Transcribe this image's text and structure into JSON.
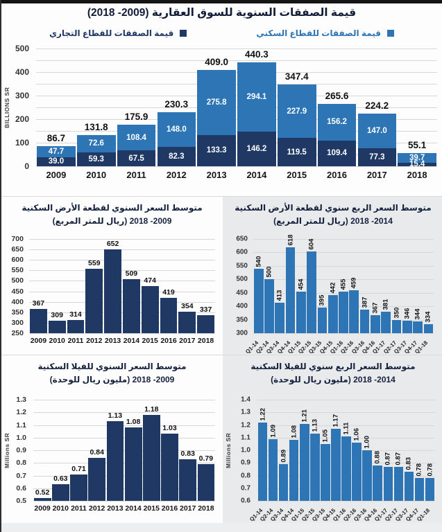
{
  "page": {
    "background": "#fdfdfe",
    "gray_panel_background": "#e8eaec",
    "accent_blue": "#2E75B6",
    "accent_navy": "#1F3864",
    "gridline_color": "#d7d7d7"
  },
  "chart_data": [
    {
      "type": "bar",
      "stacked": true,
      "title": "قيمة الصفقات السنوية للسوق العقارية (2009- 2018)",
      "ylabel": "BILLIONS SR",
      "ylim": [
        0,
        500
      ],
      "ytick_step": 100,
      "grid_step": 50,
      "ytick_decimals": 0,
      "value_decimals": 1,
      "grid": true,
      "legend_position": "top",
      "categories": [
        "2009",
        "2010",
        "2011",
        "2012",
        "2013",
        "2014",
        "2015",
        "2016",
        "2017",
        "2018"
      ],
      "series": [
        {
          "name": "قيمة الصفقات للقطاع التجاري",
          "color": "#1F3864",
          "values": [
            39.0,
            59.3,
            67.5,
            82.3,
            133.3,
            146.2,
            119.5,
            109.4,
            77.3,
            15.4
          ]
        },
        {
          "name": "قيمة الصفقات للقطاع السكني",
          "color": "#2E75B6",
          "values": [
            47.7,
            72.6,
            108.4,
            148.0,
            275.8,
            294.1,
            227.9,
            156.2,
            147.0,
            39.7
          ]
        }
      ],
      "totals": [
        86.7,
        131.8,
        175.9,
        230.3,
        409.0,
        440.3,
        347.4,
        265.6,
        224.2,
        55.1
      ]
    },
    {
      "type": "bar",
      "title": "متوسط السعر السنوي لقطعة الأرض السكنية (ريال للمتر المربع) 2009- 2018",
      "title_line1": "متوسط السعر السنوي لقطعة الأرض السكنية",
      "title_line2": "(ريال للمتر المربع) 2009- 2018",
      "ylim": [
        250,
        700
      ],
      "ytick_step": 50,
      "ytick_decimals": 0,
      "value_decimals": 0,
      "grid": true,
      "bar_color": "#1F3864",
      "categories": [
        "2009",
        "2010",
        "2011",
        "2012",
        "2013",
        "2014",
        "2015",
        "2016",
        "2017",
        "2018"
      ],
      "values": [
        367,
        309,
        314,
        559,
        652,
        509,
        474,
        419,
        354,
        337
      ]
    },
    {
      "type": "bar",
      "title": "متوسط السعر الربع سنوي لقطعة الأرض السكنية (ريال للمتر المربع) 2014- 2018",
      "title_line1": "متوسط السعر الربع سنوي لقطعة الأرض السكنية",
      "title_line2": "(ريال للمتر المربع) 2014- 2018",
      "ylim": [
        300,
        650
      ],
      "ytick_step": 50,
      "ytick_decimals": 0,
      "value_decimals": 0,
      "grid": true,
      "bar_color": "#2E75B6",
      "categories": [
        "Q1-14",
        "Q2-14",
        "Q3-14",
        "Q4-14",
        "Q1-15",
        "Q2-15",
        "Q3-15",
        "Q4-15",
        "Q1-16",
        "Q2-16",
        "Q3-16",
        "Q4-16",
        "Q1-17",
        "Q2-17",
        "Q3-17",
        "Q4-17",
        "Q1-18"
      ],
      "values": [
        540,
        500,
        413,
        618,
        454,
        604,
        395,
        442,
        455,
        459,
        387,
        367,
        381,
        350,
        346,
        344,
        334
      ]
    },
    {
      "type": "bar",
      "title": "متوسط السعر السنوي للفيلا السكنية (مليون ريال للوحدة) 2009- 2018",
      "title_line1": "متوسط السعر السنوي للفيلا السكنية",
      "title_line2": "(مليون ريال للوحدة) 2009- 2018",
      "ylabel": "Millions SR",
      "ylim": [
        0.5,
        1.3
      ],
      "ytick_step": 0.1,
      "ytick_decimals": 1,
      "value_decimals": 2,
      "grid": true,
      "bar_color": "#1F3864",
      "categories": [
        "2009",
        "2010",
        "2011",
        "2012",
        "2013",
        "2014",
        "2015",
        "2016",
        "2017",
        "2018"
      ],
      "values": [
        0.52,
        0.63,
        0.71,
        0.84,
        1.13,
        1.08,
        1.18,
        1.03,
        0.83,
        0.79
      ]
    },
    {
      "type": "bar",
      "title": "متوسط السعر الربع سنوي للفيلا السكنية (مليون ريال للوحدة) 2014- 2018",
      "title_line1": "متوسط السعر الربع سنوي للفيلا السكنية",
      "title_line2": "(مليون ريال للوحدة) 2014- 2018",
      "ylabel": "Millions SR",
      "ylim": [
        0.6,
        1.4
      ],
      "ytick_step": 0.1,
      "ytick_decimals": 1,
      "value_decimals": 2,
      "grid": true,
      "bar_color": "#2E75B6",
      "categories": [
        "Q1-14",
        "Q2-14",
        "Q3-14",
        "Q4-14",
        "Q1-15",
        "Q2-15",
        "Q3-15",
        "Q4-15",
        "Q1-16",
        "Q2-16",
        "Q3-16",
        "Q4-16",
        "Q1-17",
        "Q2-17",
        "Q3-17",
        "Q4-17",
        "Q1-18"
      ],
      "values": [
        1.22,
        1.09,
        0.89,
        1.08,
        1.21,
        1.13,
        1.05,
        1.17,
        1.11,
        1.06,
        1.0,
        0.88,
        0.87,
        0.87,
        0.83,
        0.78,
        0.78
      ]
    }
  ]
}
